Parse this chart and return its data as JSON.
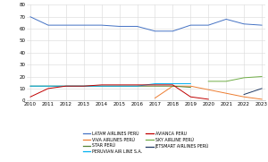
{
  "years": [
    2010,
    2011,
    2012,
    2013,
    2014,
    2015,
    2016,
    2017,
    2018,
    2019,
    2020,
    2021,
    2022,
    2023
  ],
  "series": {
    "LATAM AIRLINES PERU": {
      "color": "#4472c4",
      "label": "LATAM AIRLINES PERÚ",
      "values": [
        70,
        63,
        63,
        63,
        63,
        62,
        62,
        58,
        58,
        63,
        63,
        68,
        64,
        63
      ]
    },
    "VIVA AIRLINES PERU": {
      "color": "#ed7d31",
      "label": "VIVA AIRLINES PERÚ",
      "values": [
        null,
        null,
        null,
        null,
        null,
        null,
        null,
        2,
        12,
        12,
        9,
        6,
        3,
        1
      ]
    },
    "STAR PERU": {
      "color": "#548235",
      "label": "STAR PERÚ",
      "values": [
        12,
        12,
        12,
        12,
        12,
        12,
        12,
        12,
        12,
        11,
        null,
        null,
        null,
        null
      ]
    },
    "PERUVIAN AIR LINE S.A.": {
      "color": "#00b0f0",
      "label": "PERUVIAN AIR LINE S.A.",
      "values": [
        12,
        12,
        12,
        12,
        12,
        12,
        12,
        14,
        14,
        14,
        null,
        null,
        null,
        null
      ]
    },
    "AVIANCA PERU": {
      "color": "#c00000",
      "label": "AVIANCA PERU",
      "values": [
        3,
        10,
        12,
        12,
        13,
        13,
        13,
        13,
        13,
        3,
        1,
        null,
        null,
        null
      ]
    },
    "SKY AIRLINE PERU": {
      "color": "#70ad47",
      "label": "SKY AIRLINE PERÚ",
      "values": [
        null,
        null,
        null,
        null,
        null,
        null,
        null,
        null,
        null,
        null,
        16,
        16,
        19,
        20
      ]
    },
    "JETSMART AIRLINES PERU": {
      "color": "#1f3864",
      "label": "JETSMART AIRLINES PERÚ",
      "values": [
        null,
        null,
        null,
        null,
        null,
        null,
        null,
        null,
        null,
        null,
        null,
        null,
        5,
        10
      ]
    }
  },
  "ylim": [
    0,
    80
  ],
  "yticks": [
    0,
    10,
    20,
    30,
    40,
    50,
    60,
    70,
    80
  ],
  "xlim": [
    2010,
    2023
  ],
  "background_color": "#ffffff",
  "grid_color": "#d9d9d9",
  "figsize": [
    3.0,
    1.81
  ],
  "dpi": 100
}
